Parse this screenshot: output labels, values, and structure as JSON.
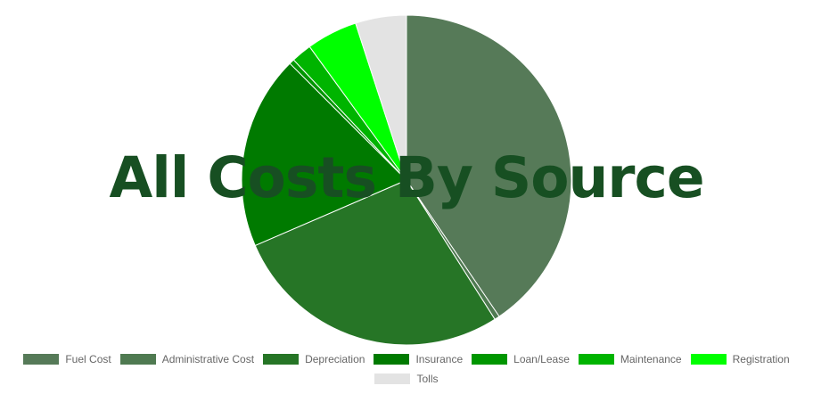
{
  "chart_data": {
    "type": "pie",
    "title": "All Costs By Source",
    "slices": [
      {
        "label": "Fuel Cost",
        "value": 40.5,
        "color": "#567a58"
      },
      {
        "label": "Administrative Cost",
        "value": 0.5,
        "color": "#4f7a51"
      },
      {
        "label": "Depreciation",
        "value": 27.5,
        "color": "#267526"
      },
      {
        "label": "Insurance",
        "value": 19.0,
        "color": "#007a00"
      },
      {
        "label": "Loan/Lease",
        "value": 0.5,
        "color": "#009600"
      },
      {
        "label": "Maintenance",
        "value": 2.0,
        "color": "#00b400"
      },
      {
        "label": "Registration",
        "value": 5.0,
        "color": "#00ff00"
      },
      {
        "label": "Tolls",
        "value": 5.0,
        "color": "#e3e3e3"
      }
    ],
    "legend_position": "bottom"
  }
}
